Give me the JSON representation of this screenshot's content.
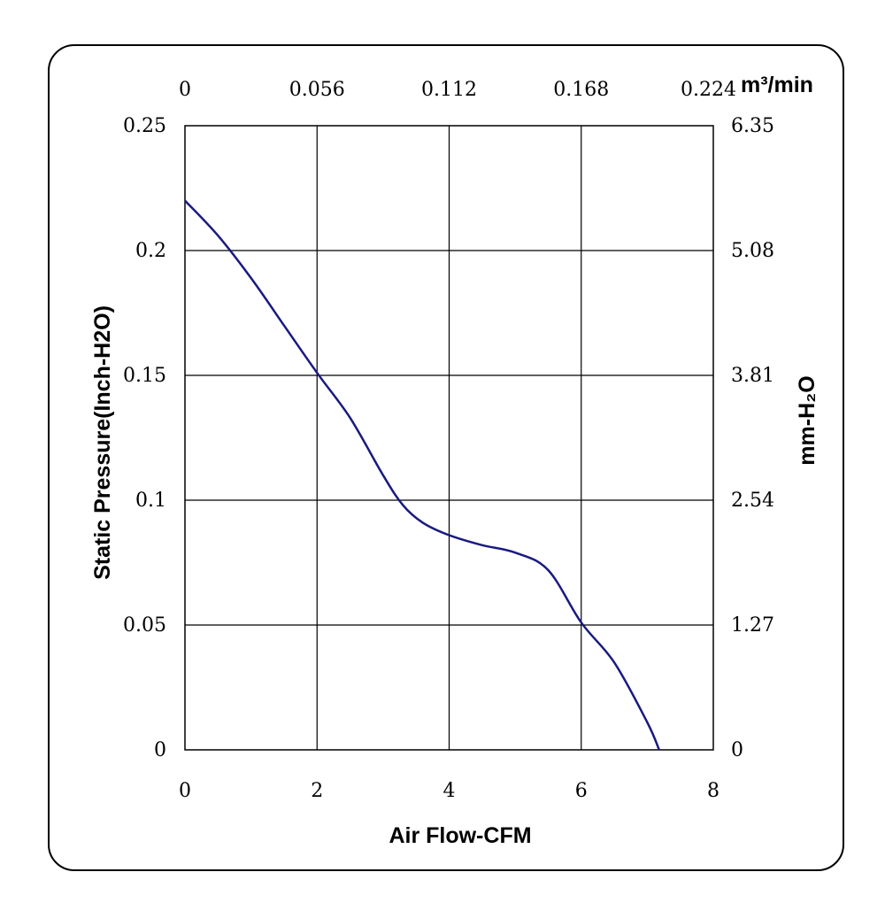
{
  "chart_data": {
    "type": "line",
    "xlabel": "Air Flow-CFM",
    "ylabel": "Static Pressure(Inch-H2O)",
    "x2label": "m³/min",
    "y2label": "mm-H₂O",
    "xlim": [
      0,
      8
    ],
    "ylim": [
      0,
      0.25
    ],
    "grid": true,
    "x_ticks": [
      "0",
      "2",
      "4",
      "6",
      "8"
    ],
    "y_ticks": [
      "0",
      "0.05",
      "0.1",
      "0.15",
      "0.2",
      "0.25"
    ],
    "x2_ticks": [
      "0",
      "0.056",
      "0.112",
      "0.168",
      "0.224"
    ],
    "y2_ticks": [
      "0",
      "1.27",
      "2.54",
      "3.81",
      "5.08",
      "6.35"
    ],
    "series": [
      {
        "color": "#1a1a80",
        "x": [
          0,
          0.5,
          1.0,
          1.5,
          2.0,
          2.5,
          3.0,
          3.3,
          3.6,
          4.0,
          4.5,
          5.0,
          5.5,
          6.0,
          6.5,
          7.0,
          7.18
        ],
        "y": [
          0.22,
          0.206,
          0.189,
          0.17,
          0.151,
          0.133,
          0.11,
          0.098,
          0.091,
          0.086,
          0.082,
          0.079,
          0.072,
          0.051,
          0.035,
          0.011,
          0.0
        ]
      }
    ]
  }
}
